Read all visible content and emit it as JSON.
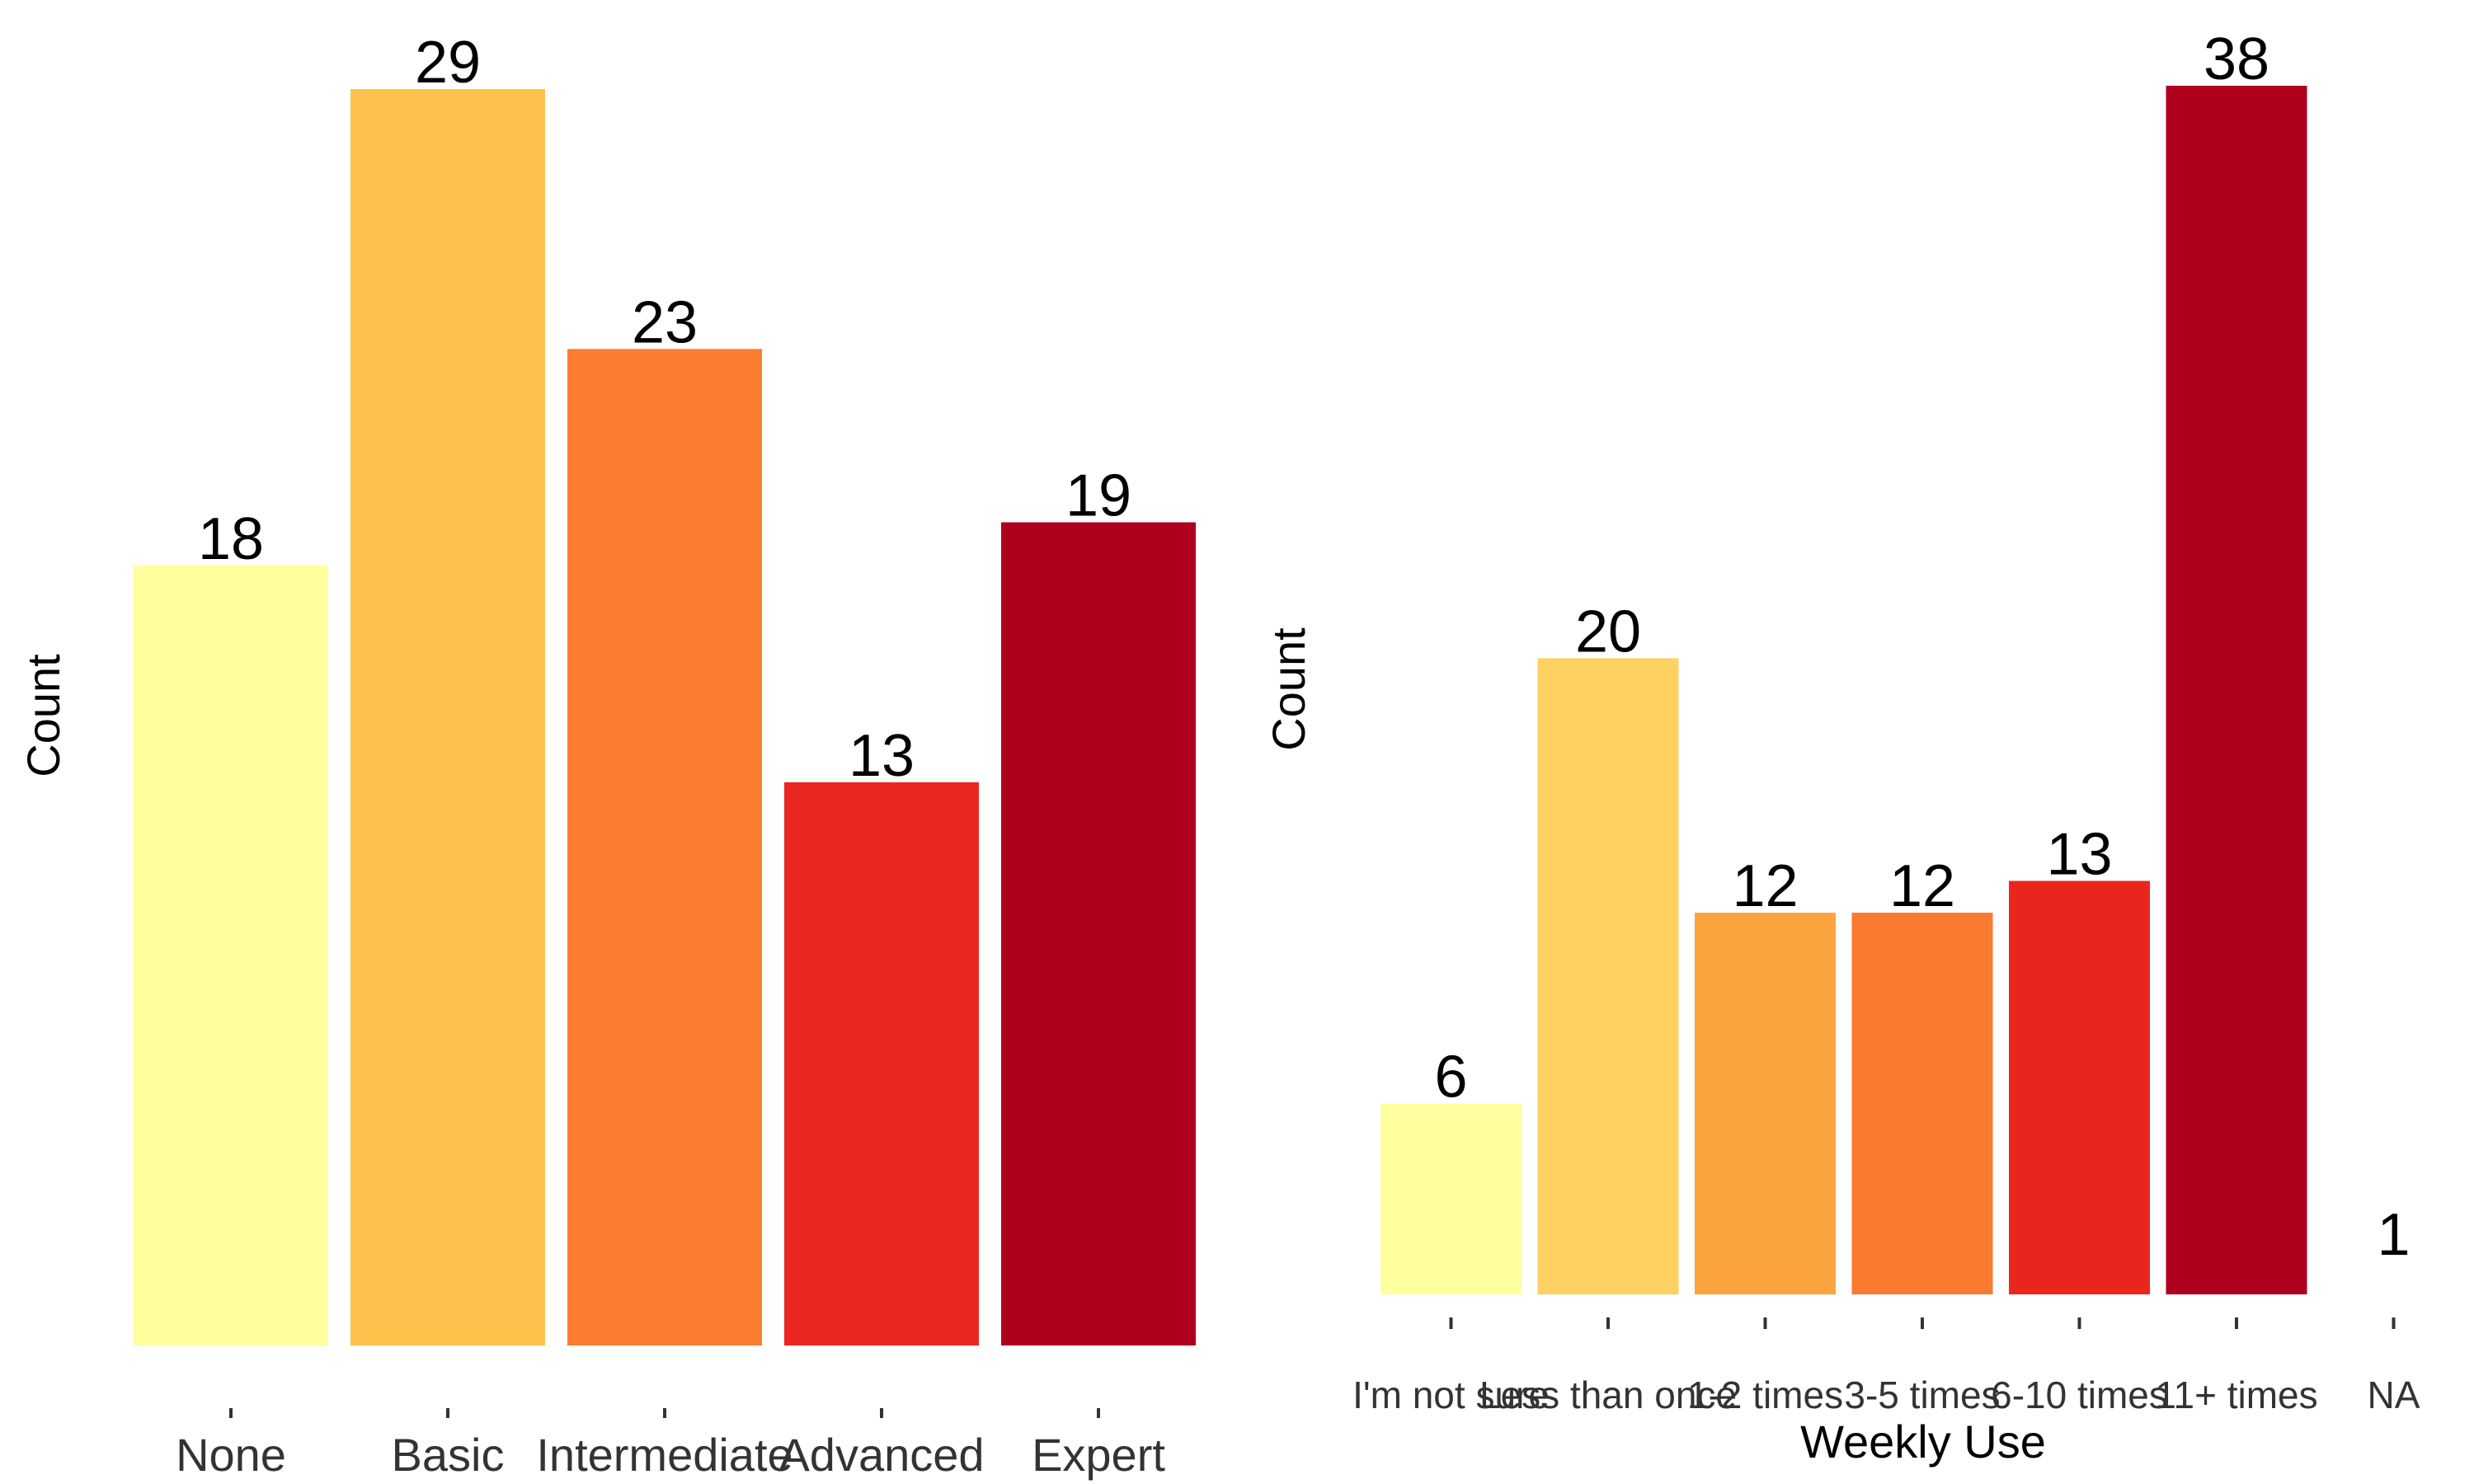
{
  "chart_data": [
    {
      "type": "bar",
      "title": "",
      "xlabel": "",
      "ylabel": "Count",
      "ylim": [
        0,
        29
      ],
      "grid": false,
      "categories": [
        "None",
        "Basic",
        "Intermediate",
        "Advanced",
        "Expert"
      ],
      "values": [
        18,
        29,
        23,
        13,
        19
      ],
      "colors": [
        "#FFFF9F",
        "#FEC24C",
        "#FC7D30",
        "#EA2620",
        "#AE001E"
      ]
    },
    {
      "type": "bar",
      "title": "",
      "xlabel": "Weekly Use",
      "ylabel": "Count",
      "ylim": [
        0,
        38
      ],
      "grid": false,
      "categories": [
        "I'm not sure",
        "Less than once",
        "1-2 times",
        "3-5 times",
        "6-10 times",
        "11+ times",
        "NA"
      ],
      "values": [
        6,
        20,
        12,
        12,
        13,
        38,
        1
      ],
      "colors": [
        "#FFFF9F",
        "#FFD162",
        "#FBA43E",
        "#FA7A30",
        "#E9261E",
        "#AE001E",
        "#AE001E"
      ],
      "label_only_categories": [
        "NA"
      ]
    }
  ]
}
